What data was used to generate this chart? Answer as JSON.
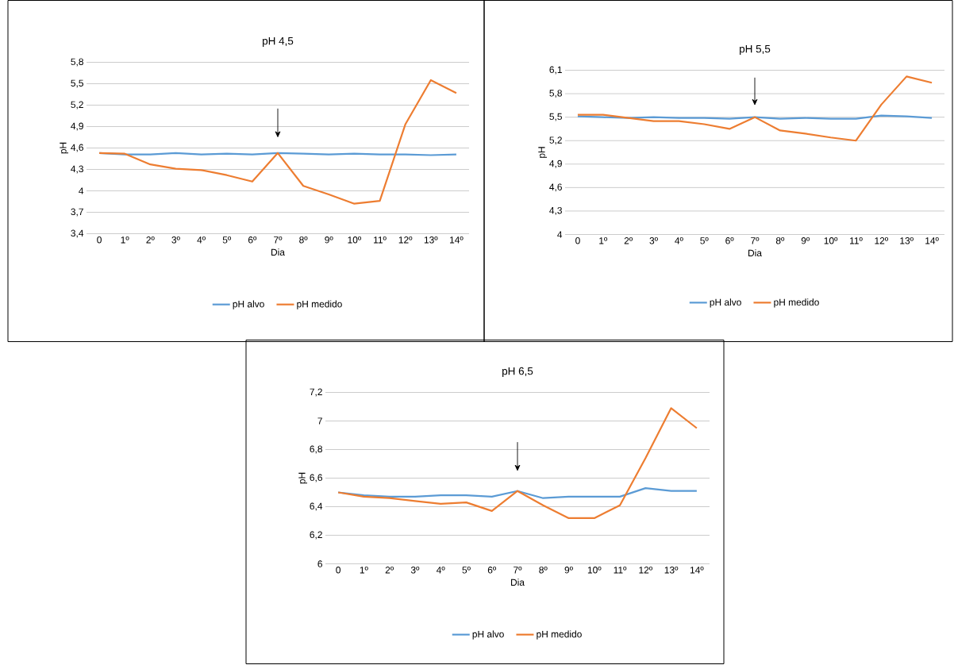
{
  "chart_data": [
    {
      "type": "line",
      "title": "pH 4,5",
      "xlabel": "Dia",
      "ylabel": "pH",
      "categories": [
        "0",
        "1º",
        "2º",
        "3º",
        "4º",
        "5º",
        "6º",
        "7º",
        "8º",
        "9º",
        "10º",
        "11º",
        "12º",
        "13º",
        "14º"
      ],
      "series": [
        {
          "name": "pH alvo",
          "color": "#5b9bd5",
          "values": [
            4.53,
            4.51,
            4.51,
            4.53,
            4.51,
            4.52,
            4.51,
            4.53,
            4.52,
            4.51,
            4.52,
            4.51,
            4.51,
            4.5,
            4.51
          ]
        },
        {
          "name": "pH medido",
          "color": "#ed7d31",
          "values": [
            4.53,
            4.52,
            4.37,
            4.31,
            4.29,
            4.22,
            4.13,
            4.53,
            4.07,
            3.95,
            3.82,
            3.86,
            4.93,
            5.55,
            5.37
          ]
        }
      ],
      "ylim": [
        3.4,
        5.8
      ],
      "yticks": [
        {
          "value": 3.4,
          "label": "3,4"
        },
        {
          "value": 3.7,
          "label": "3,7"
        },
        4,
        {
          "value": 4.3,
          "label": "4,3"
        },
        {
          "value": 4.6,
          "label": "4,6"
        },
        {
          "value": 4.9,
          "label": "4,9"
        },
        {
          "value": 5.2,
          "label": "5,2"
        },
        {
          "value": 5.5,
          "label": "5,5"
        },
        {
          "value": 5.8,
          "label": "5,8"
        }
      ],
      "grid": "y",
      "legend": "bottom",
      "marker": "none",
      "line_style": "solid"
    },
    {
      "type": "line",
      "title": "pH 5,5",
      "xlabel": "Dia",
      "ylabel": "pH",
      "categories": [
        "0",
        "1º",
        "2º",
        "3º",
        "4º",
        "5º",
        "6º",
        "7º",
        "8º",
        "9º",
        "10º",
        "11º",
        "12º",
        "13º",
        "14º"
      ],
      "series": [
        {
          "name": "pH alvo",
          "color": "#5b9bd5",
          "values": [
            5.51,
            5.5,
            5.49,
            5.5,
            5.49,
            5.49,
            5.48,
            5.5,
            5.48,
            5.49,
            5.48,
            5.48,
            5.52,
            5.51,
            5.49
          ]
        },
        {
          "name": "pH medido",
          "color": "#ed7d31",
          "values": [
            5.53,
            5.53,
            5.49,
            5.45,
            5.45,
            5.41,
            5.35,
            5.5,
            5.33,
            5.29,
            5.24,
            5.2,
            5.66,
            6.02,
            5.94
          ]
        }
      ],
      "ylim": [
        4,
        6.1
      ],
      "yticks": [
        4,
        {
          "value": 4.3,
          "label": "4,3"
        },
        {
          "value": 4.6,
          "label": "4,6"
        },
        {
          "value": 4.9,
          "label": "4,9"
        },
        {
          "value": 5.2,
          "label": "5,2"
        },
        {
          "value": 5.5,
          "label": "5,5"
        },
        {
          "value": 5.8,
          "label": "5,8"
        },
        {
          "value": 6.1,
          "label": "6,1"
        }
      ],
      "grid": "y",
      "legend": "bottom",
      "marker": "none",
      "line_style": "solid"
    },
    {
      "type": "line",
      "title": "pH 6,5",
      "xlabel": "Dia",
      "ylabel": "pH",
      "categories": [
        "0",
        "1º",
        "2º",
        "3º",
        "4º",
        "5º",
        "6º",
        "7º",
        "8º",
        "9º",
        "10º",
        "11º",
        "12º",
        "13º",
        "14º"
      ],
      "series": [
        {
          "name": "pH alvo",
          "color": "#5b9bd5",
          "values": [
            6.5,
            6.48,
            6.47,
            6.47,
            6.48,
            6.48,
            6.47,
            6.51,
            6.46,
            6.47,
            6.47,
            6.47,
            6.53,
            6.51,
            6.51
          ]
        },
        {
          "name": "pH medido",
          "color": "#ed7d31",
          "values": [
            6.5,
            6.47,
            6.46,
            6.44,
            6.42,
            6.43,
            6.37,
            6.51,
            6.41,
            6.32,
            6.32,
            6.41,
            6.74,
            7.09,
            6.95
          ]
        }
      ],
      "ylim": [
        6,
        7.2
      ],
      "yticks": [
        6,
        {
          "value": 6.2,
          "label": "6,2"
        },
        {
          "value": 6.4,
          "label": "6,4"
        },
        {
          "value": 6.6,
          "label": "6,6"
        },
        {
          "value": 6.8,
          "label": "6,8"
        },
        7,
        {
          "value": 7.2,
          "label": "7,2"
        }
      ],
      "grid": "y",
      "legend": "bottom",
      "marker": "none",
      "line_style": "solid"
    }
  ]
}
